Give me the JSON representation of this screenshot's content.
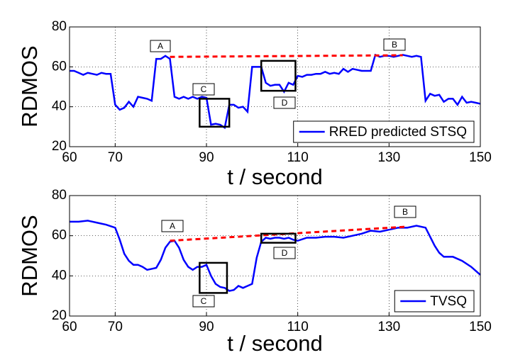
{
  "chart_data": [
    {
      "type": "line",
      "ylabel": "RDMOS",
      "xlabel": "t / second",
      "xlim": [
        60,
        150
      ],
      "xticks": [
        60,
        70,
        90,
        110,
        130,
        150
      ],
      "ylim": [
        20,
        80
      ],
      "yticks": [
        20,
        40,
        60,
        80
      ],
      "grid": true,
      "legend": "lower right",
      "series": [
        {
          "name": "RRED predicted STSQ",
          "color": "#0000ff",
          "x": [
            60,
            61,
            62,
            63,
            64,
            65,
            66,
            67,
            68,
            69,
            70,
            71,
            72,
            73,
            74,
            75,
            76,
            77,
            78,
            79,
            80,
            81,
            82,
            83,
            84,
            85,
            86,
            87,
            88,
            89,
            90,
            91,
            92,
            93,
            94,
            95,
            96,
            97,
            98,
            99,
            100,
            101,
            102,
            103,
            104,
            105,
            106,
            107,
            108,
            109,
            110,
            111,
            112,
            113,
            114,
            115,
            116,
            117,
            118,
            119,
            120,
            121,
            122,
            123,
            124,
            125,
            126,
            127,
            128,
            129,
            130,
            131,
            132,
            133,
            134,
            135,
            136,
            137,
            138,
            139,
            140,
            141,
            142,
            143,
            144,
            145,
            146,
            147,
            148,
            149,
            150
          ],
          "values": [
            58,
            58,
            57,
            56,
            57,
            56.5,
            56,
            57,
            56.5,
            56.5,
            41,
            38.5,
            39.5,
            42.5,
            40,
            45,
            44.5,
            44,
            43,
            64,
            64,
            65.5,
            64,
            45,
            44,
            45,
            44,
            45,
            44,
            45,
            44.5,
            31,
            31.5,
            31,
            29.5,
            41,
            41,
            39.5,
            40,
            37.5,
            60,
            60,
            60,
            52,
            50.5,
            51,
            51,
            47.5,
            52,
            51,
            55.5,
            55,
            56,
            56,
            56.5,
            56.5,
            57.5,
            56.5,
            57,
            56.5,
            59,
            57.5,
            59,
            58.5,
            58,
            58,
            58,
            66,
            65,
            65.5,
            65.5,
            65,
            65.5,
            66,
            65.5,
            65,
            65.5,
            65,
            43,
            46.5,
            45.5,
            46,
            42.5,
            44,
            44,
            41,
            45,
            42,
            42.5,
            42,
            41.5
          ]
        }
      ],
      "reference_line": {
        "color": "#ff0000",
        "x": [
          82,
          133
        ],
        "values": [
          65,
          65.8
        ]
      },
      "highlight_boxes": [
        {
          "xlim": [
            88.5,
            95
          ],
          "ylim": [
            30,
            44
          ]
        },
        {
          "xlim": [
            102,
            109.5
          ],
          "ylim": [
            48,
            63
          ]
        }
      ],
      "annotations": [
        "A",
        "B",
        "C",
        "D"
      ]
    },
    {
      "type": "line",
      "ylabel": "RDMOS",
      "xlabel": "t / second",
      "xlim": [
        60,
        150
      ],
      "xticks": [
        60,
        70,
        90,
        110,
        130,
        150
      ],
      "ylim": [
        20,
        80
      ],
      "yticks": [
        20,
        40,
        60,
        80
      ],
      "grid": true,
      "legend": "lower right",
      "series": [
        {
          "name": "TVSQ",
          "color": "#0000ff",
          "x": [
            60,
            62,
            64,
            66,
            68,
            70,
            71,
            72,
            73,
            74,
            75,
            76,
            77,
            78,
            79,
            80,
            81,
            82,
            83,
            84,
            85,
            86,
            87,
            88,
            89,
            90,
            91,
            92,
            93,
            94,
            95,
            96,
            97,
            98,
            99,
            100,
            101,
            102,
            103,
            104,
            105,
            106,
            107,
            108,
            109,
            110,
            112,
            114,
            116,
            118,
            120,
            122,
            124,
            126,
            128,
            130,
            132,
            134,
            136,
            138,
            140,
            141,
            142,
            144,
            146,
            148,
            150
          ],
          "values": [
            67,
            67,
            67.5,
            66.5,
            65.5,
            64,
            58,
            51,
            47.5,
            45.5,
            45.5,
            44.5,
            43,
            43.5,
            44,
            48,
            54,
            57,
            57.5,
            54,
            48,
            44.5,
            43,
            44.5,
            44.5,
            45.5,
            40,
            36,
            34.5,
            34,
            32.5,
            33,
            35,
            34,
            35,
            36,
            49,
            57,
            59,
            58.5,
            59,
            59,
            58.5,
            59,
            58,
            57.5,
            59,
            59,
            59.5,
            59.5,
            59,
            60,
            61,
            62.5,
            62,
            63,
            64,
            64,
            65,
            64,
            55,
            51.5,
            49.5,
            49.5,
            47.5,
            44.5,
            40.5
          ]
        }
      ],
      "reference_line": {
        "color": "#ff0000",
        "x": [
          82,
          134
        ],
        "values": [
          57.5,
          64.5
        ]
      },
      "highlight_boxes": [
        {
          "xlim": [
            88.5,
            94.5
          ],
          "ylim": [
            31.5,
            46.5
          ]
        },
        {
          "xlim": [
            102,
            109.5
          ],
          "ylim": [
            56.5,
            61
          ]
        }
      ],
      "annotations": [
        "A",
        "B",
        "C",
        "D"
      ]
    }
  ]
}
